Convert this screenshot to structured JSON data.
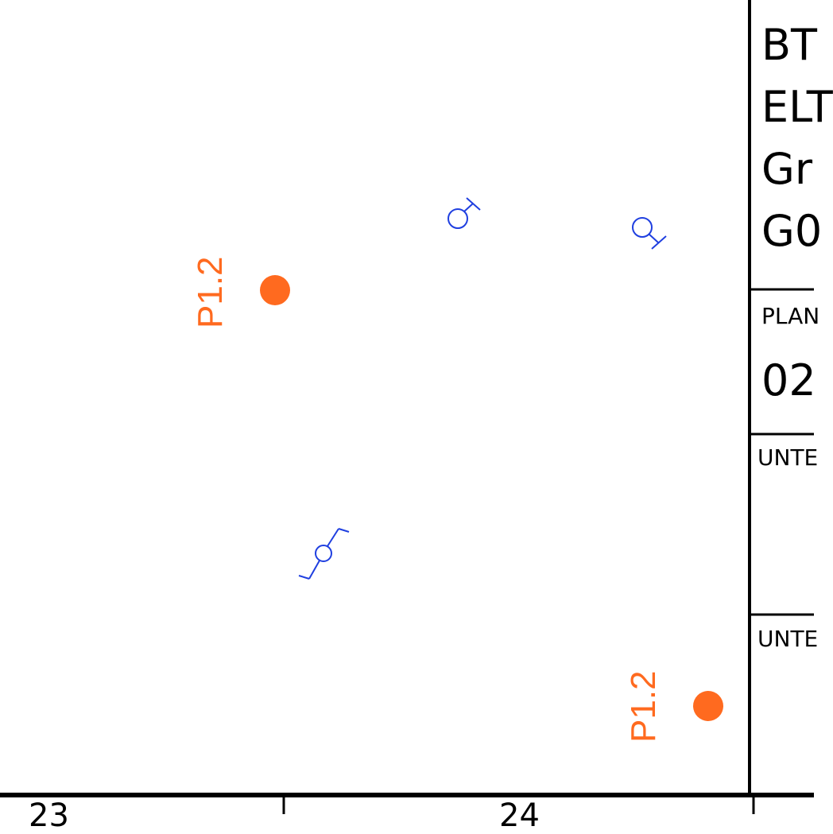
{
  "title_block": {
    "line1": "BT",
    "line2": "ELT",
    "line3": "Gr",
    "line4": "G0",
    "plan_label": "PLAN",
    "plan_number": "02",
    "field1_label": "UNTE",
    "field2_label": "UNTE"
  },
  "markers": {
    "tag_upper": "P1.2",
    "tag_lower": "P1.2"
  },
  "ruler": {
    "left_number": "23",
    "right_number": "24"
  },
  "colors": {
    "marker": "#ff6a1f",
    "fixture": "#1f3fe0",
    "frame": "#000000"
  }
}
